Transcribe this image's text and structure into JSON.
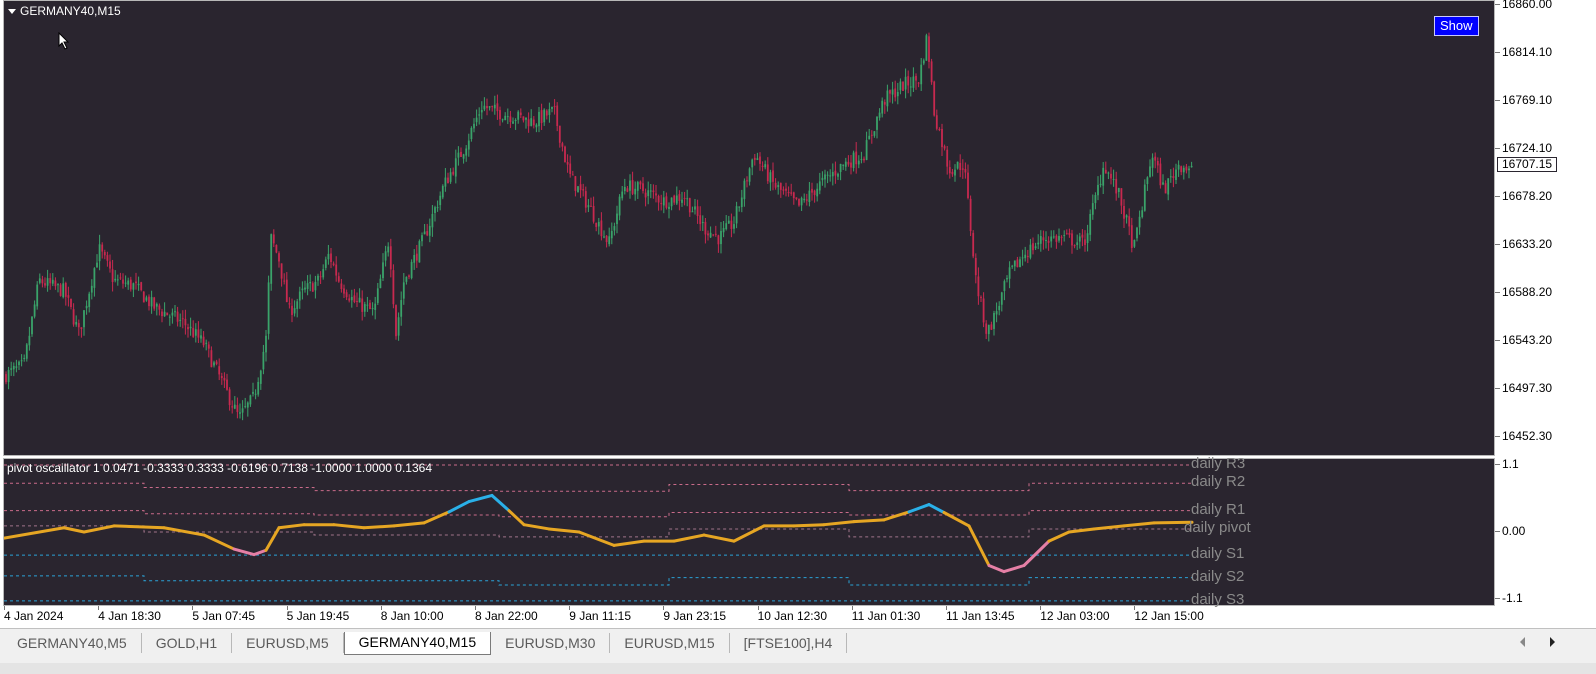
{
  "window": {
    "symbol_title": "GERMANY40,M15",
    "show_button_label": "Show",
    "current_price": "16707.15"
  },
  "main_axis": {
    "labels": [
      "16860.00",
      "16814.10",
      "16769.10",
      "16724.10",
      "16678.20",
      "16633.20",
      "16588.20",
      "16543.20",
      "16497.30",
      "16452.30"
    ]
  },
  "oscillator": {
    "header": "pivot oscaillator 1 0.0471 -0.3333 0.3333 -0.6196 0.7138 -1.0000 1.0000 0.1364",
    "axis_labels": [
      "1.1",
      "0.00",
      "-1.1"
    ],
    "level_labels": [
      "daily R3",
      "daily R2",
      "daily R1",
      "daily pivot",
      "daily S1",
      "daily S2",
      "daily S3"
    ]
  },
  "time_axis": {
    "labels": [
      "4 Jan 2024",
      "4 Jan 18:30",
      "5 Jan 07:45",
      "5 Jan 19:45",
      "8 Jan 10:00",
      "8 Jan 22:00",
      "9 Jan 11:15",
      "9 Jan 23:15",
      "10 Jan 12:30",
      "11 Jan 01:30",
      "11 Jan 13:45",
      "12 Jan 03:00",
      "12 Jan 15:00"
    ]
  },
  "tabs": [
    "GERMANY40,M5",
    "GOLD,H1",
    "EURUSD,M5",
    "GERMANY40,M15",
    "EURUSD,M30",
    "EURUSD,M15",
    "[FTSE100],H4"
  ],
  "active_tab_index": 3,
  "colors": {
    "background": "#2a252f",
    "bull": "#3aa36a",
    "bear": "#c8294f",
    "osc_line": "#e6a623",
    "osc_high": "#2ab0e8",
    "osc_low": "#e57fa5",
    "resistance": "#c96b8a",
    "support": "#2aa2d6",
    "pivot": "#a0748a"
  },
  "chart_data": {
    "type": "candlestick",
    "symbol": "GERMANY40",
    "timeframe": "M15",
    "y_range": [
      16452.3,
      16860.0
    ],
    "current_price": 16707.15,
    "price_path": [
      [
        0,
        16510
      ],
      [
        20,
        16520
      ],
      [
        35,
        16600
      ],
      [
        60,
        16590
      ],
      [
        75,
        16550
      ],
      [
        95,
        16630
      ],
      [
        110,
        16600
      ],
      [
        130,
        16595
      ],
      [
        150,
        16575
      ],
      [
        180,
        16560
      ],
      [
        200,
        16540
      ],
      [
        220,
        16500
      ],
      [
        235,
        16470
      ],
      [
        250,
        16490
      ],
      [
        262,
        16545
      ],
      [
        267,
        16640
      ],
      [
        275,
        16620
      ],
      [
        285,
        16570
      ],
      [
        300,
        16590
      ],
      [
        315,
        16600
      ],
      [
        325,
        16625
      ],
      [
        335,
        16600
      ],
      [
        350,
        16580
      ],
      [
        370,
        16570
      ],
      [
        385,
        16640
      ],
      [
        392,
        16550
      ],
      [
        400,
        16600
      ],
      [
        420,
        16640
      ],
      [
        440,
        16690
      ],
      [
        460,
        16725
      ],
      [
        478,
        16765
      ],
      [
        490,
        16760
      ],
      [
        510,
        16755
      ],
      [
        530,
        16750
      ],
      [
        550,
        16760
      ],
      [
        565,
        16700
      ],
      [
        585,
        16670
      ],
      [
        605,
        16635
      ],
      [
        620,
        16690
      ],
      [
        640,
        16685
      ],
      [
        660,
        16675
      ],
      [
        680,
        16680
      ],
      [
        700,
        16650
      ],
      [
        715,
        16640
      ],
      [
        730,
        16655
      ],
      [
        750,
        16720
      ],
      [
        770,
        16690
      ],
      [
        795,
        16670
      ],
      [
        815,
        16690
      ],
      [
        840,
        16710
      ],
      [
        860,
        16720
      ],
      [
        880,
        16770
      ],
      [
        900,
        16785
      ],
      [
        915,
        16790
      ],
      [
        923,
        16830
      ],
      [
        930,
        16760
      ],
      [
        945,
        16705
      ],
      [
        960,
        16710
      ],
      [
        972,
        16600
      ],
      [
        983,
        16550
      ],
      [
        990,
        16565
      ],
      [
        1005,
        16605
      ],
      [
        1020,
        16625
      ],
      [
        1040,
        16640
      ],
      [
        1060,
        16640
      ],
      [
        1080,
        16635
      ],
      [
        1100,
        16710
      ],
      [
        1115,
        16680
      ],
      [
        1130,
        16630
      ],
      [
        1148,
        16720
      ],
      [
        1160,
        16685
      ],
      [
        1175,
        16710
      ],
      [
        1188,
        16705
      ]
    ],
    "oscillator": {
      "name": "pivot oscaillator",
      "y_range": [
        -1.1,
        1.1
      ],
      "line": [
        [
          0,
          -0.1
        ],
        [
          60,
          0.07
        ],
        [
          80,
          0.0
        ],
        [
          110,
          0.1
        ],
        [
          160,
          0.07
        ],
        [
          200,
          -0.05
        ],
        [
          230,
          -0.28
        ],
        [
          250,
          -0.37
        ],
        [
          262,
          -0.3
        ],
        [
          275,
          0.07
        ],
        [
          300,
          0.12
        ],
        [
          330,
          0.12
        ],
        [
          360,
          0.07
        ],
        [
          390,
          0.1
        ],
        [
          420,
          0.15
        ],
        [
          445,
          0.33
        ],
        [
          465,
          0.5
        ],
        [
          488,
          0.6
        ],
        [
          505,
          0.35
        ],
        [
          520,
          0.12
        ],
        [
          545,
          0.05
        ],
        [
          575,
          0.0
        ],
        [
          610,
          -0.22
        ],
        [
          640,
          -0.15
        ],
        [
          670,
          -0.15
        ],
        [
          700,
          -0.05
        ],
        [
          730,
          -0.15
        ],
        [
          760,
          0.1
        ],
        [
          790,
          0.1
        ],
        [
          820,
          0.12
        ],
        [
          850,
          0.17
        ],
        [
          880,
          0.2
        ],
        [
          905,
          0.33
        ],
        [
          925,
          0.45
        ],
        [
          940,
          0.32
        ],
        [
          965,
          0.1
        ],
        [
          985,
          -0.55
        ],
        [
          1000,
          -0.65
        ],
        [
          1020,
          -0.55
        ],
        [
          1045,
          -0.15
        ],
        [
          1065,
          0.0
        ],
        [
          1090,
          0.05
        ],
        [
          1120,
          0.1
        ],
        [
          1150,
          0.15
        ],
        [
          1188,
          0.16
        ]
      ],
      "levels": [
        {
          "name": "daily R3",
          "kind": "resistance",
          "steps": [
            [
              0,
              1.1
            ],
            [
              1188,
              1.1
            ]
          ]
        },
        {
          "name": "daily R2",
          "kind": "resistance",
          "steps": [
            [
              0,
              0.8
            ],
            [
              140,
              0.73
            ],
            [
              310,
              0.68
            ],
            [
              495,
              0.67
            ],
            [
              665,
              0.78
            ],
            [
              845,
              0.68
            ],
            [
              1025,
              0.8
            ],
            [
              1188,
              0.8
            ]
          ]
        },
        {
          "name": "daily R1",
          "kind": "resistance",
          "steps": [
            [
              0,
              0.35
            ],
            [
              140,
              0.3
            ],
            [
              310,
              0.28
            ],
            [
              495,
              0.25
            ],
            [
              665,
              0.32
            ],
            [
              845,
              0.28
            ],
            [
              1025,
              0.35
            ],
            [
              1188,
              0.35
            ]
          ]
        },
        {
          "name": "daily pivot",
          "kind": "pivot",
          "steps": [
            [
              0,
              0.1
            ],
            [
              140,
              0.0
            ],
            [
              310,
              -0.05
            ],
            [
              495,
              -0.08
            ],
            [
              665,
              0.05
            ],
            [
              845,
              -0.08
            ],
            [
              1025,
              0.05
            ],
            [
              1188,
              0.05
            ]
          ]
        },
        {
          "name": "daily S1",
          "kind": "support",
          "steps": [
            [
              0,
              -0.38
            ],
            [
              140,
              -0.38
            ],
            [
              310,
              -0.38
            ],
            [
              495,
              -0.38
            ],
            [
              665,
              -0.38
            ],
            [
              845,
              -0.38
            ],
            [
              1025,
              -0.38
            ],
            [
              1188,
              -0.38
            ]
          ]
        },
        {
          "name": "daily S2",
          "kind": "support",
          "steps": [
            [
              0,
              -0.72
            ],
            [
              140,
              -0.8
            ],
            [
              310,
              -0.8
            ],
            [
              495,
              -0.87
            ],
            [
              665,
              -0.75
            ],
            [
              845,
              -0.87
            ],
            [
              1025,
              -0.75
            ],
            [
              1188,
              -0.75
            ]
          ]
        },
        {
          "name": "daily S3",
          "kind": "support",
          "steps": [
            [
              0,
              -1.13
            ],
            [
              1188,
              -1.13
            ]
          ]
        }
      ]
    }
  }
}
